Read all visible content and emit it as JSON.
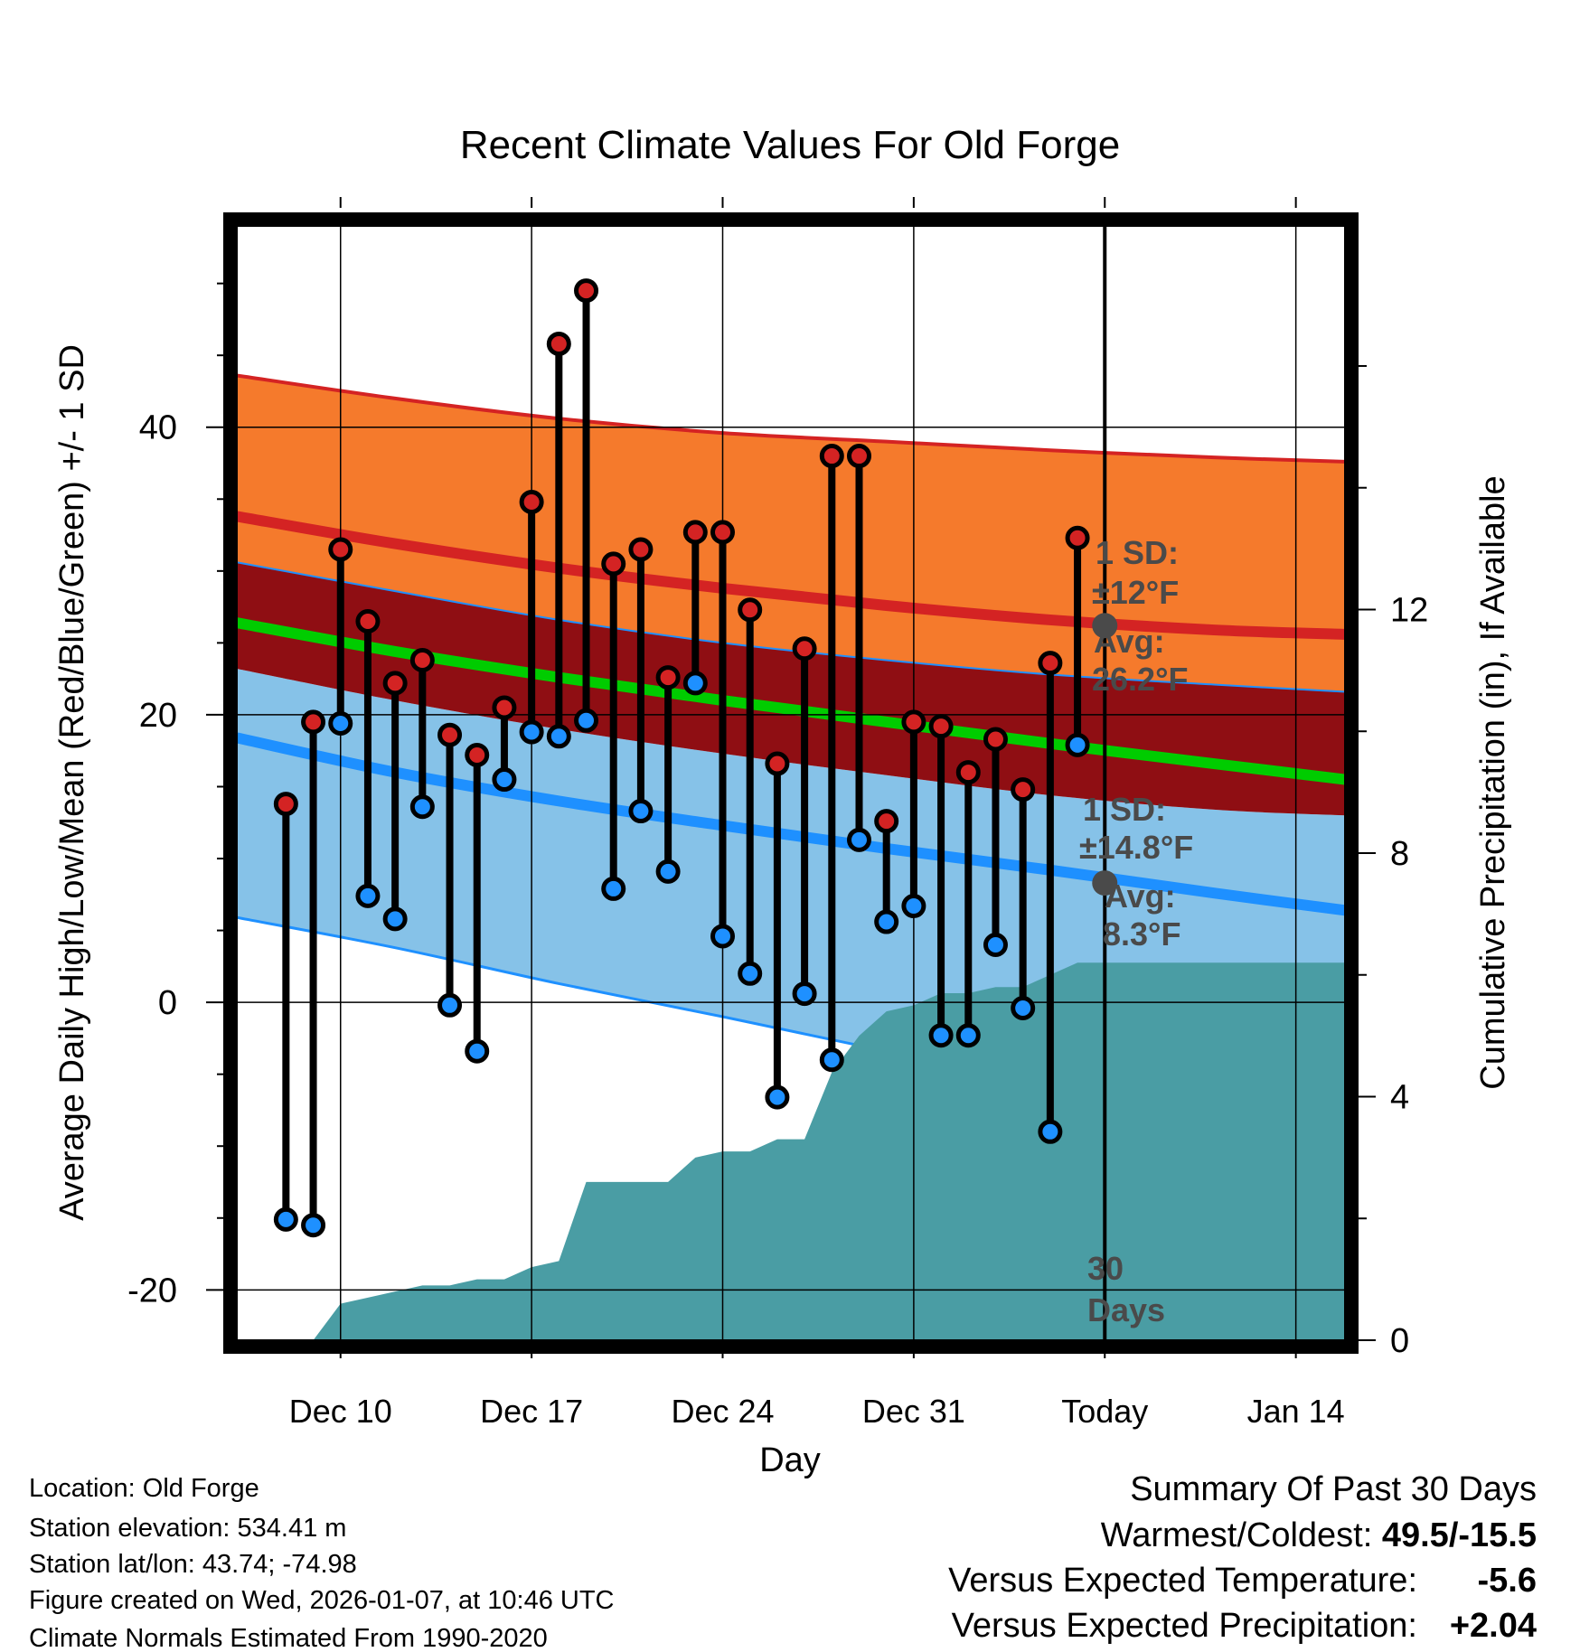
{
  "chart_data": {
    "type": "line",
    "title": "Recent Climate Values For Old Forge",
    "xlabel": "Day",
    "ylabel": "Average Daily High/Low/Mean (Red/Blue/Green) +/- 1 SD",
    "y2label": "Cumulative Precipitation (in), If Available",
    "xlim": [
      6.2,
      46.8
    ],
    "ylim": [
      -23.5,
      54
    ],
    "y2lim": [
      0,
      18.3
    ],
    "x_ticks": [
      {
        "x": 10,
        "label": "Dec 10"
      },
      {
        "x": 17,
        "label": "Dec 17"
      },
      {
        "x": 24,
        "label": "Dec 24"
      },
      {
        "x": 31,
        "label": "Dec 31"
      },
      {
        "x": 38,
        "label": "Today"
      },
      {
        "x": 45,
        "label": "Jan 14"
      }
    ],
    "y_ticks": [
      {
        "v": -20,
        "label": "-20"
      },
      {
        "v": 0,
        "label": "0"
      },
      {
        "v": 20,
        "label": "20"
      },
      {
        "v": 40,
        "label": "40"
      }
    ],
    "y2_ticks": [
      {
        "v": 0,
        "label": "0"
      },
      {
        "v": 4,
        "label": "4"
      },
      {
        "v": 8,
        "label": "8"
      },
      {
        "v": 12,
        "label": "12"
      }
    ],
    "today_x": 38,
    "today_label": "30 Days",
    "normals_x": [
      6.2,
      12,
      18,
      24,
      30,
      36,
      42,
      46.8
    ],
    "normal_high_upper": [
      43.6,
      42.0,
      40.6,
      39.6,
      39.0,
      38.4,
      37.9,
      37.6
    ],
    "normal_high_avg": [
      33.8,
      31.9,
      30.2,
      28.8,
      27.6,
      26.6,
      25.9,
      25.6
    ],
    "normal_high_lower": [
      30.6,
      28.6,
      26.6,
      25.0,
      23.8,
      22.8,
      22.1,
      21.6
    ],
    "normal_mean": [
      26.4,
      24.4,
      22.6,
      21.0,
      19.5,
      18.0,
      16.6,
      15.5
    ],
    "normal_low_upper": [
      23.2,
      21.0,
      19.0,
      17.3,
      15.8,
      14.4,
      13.4,
      13.0
    ],
    "normal_low_avg": [
      18.4,
      16.0,
      14.0,
      12.3,
      10.7,
      9.2,
      7.6,
      6.4
    ],
    "normal_low_lower": [
      5.9,
      3.8,
      1.3,
      -1.0,
      -3.4,
      -5.8,
      -8.0,
      -9.2
    ],
    "series": [
      {
        "name": "Daily High",
        "x": [
          8,
          9,
          10,
          11,
          12,
          13,
          14,
          15,
          16,
          17,
          18,
          19,
          20,
          21,
          22,
          23,
          24,
          25,
          26,
          27,
          28,
          29,
          30,
          31,
          32,
          33,
          34,
          35,
          36,
          37
        ],
        "values": [
          13.8,
          19.5,
          31.5,
          26.5,
          22.2,
          23.8,
          18.6,
          17.2,
          20.5,
          34.8,
          45.8,
          49.5,
          30.5,
          31.5,
          22.6,
          32.7,
          32.7,
          27.3,
          16.6,
          24.6,
          38.0,
          38.0,
          12.6,
          19.5,
          19.2,
          16.0,
          18.3,
          14.8,
          23.6,
          32.3
        ]
      },
      {
        "name": "Daily Low",
        "x": [
          8,
          9,
          10,
          11,
          12,
          13,
          14,
          15,
          16,
          17,
          18,
          19,
          20,
          21,
          22,
          23,
          24,
          25,
          26,
          27,
          28,
          29,
          30,
          31,
          32,
          33,
          34,
          35,
          36,
          37
        ],
        "values": [
          -15.1,
          -15.5,
          19.4,
          7.4,
          5.8,
          13.6,
          -0.2,
          -3.4,
          15.5,
          18.8,
          18.5,
          19.6,
          7.9,
          13.3,
          9.1,
          22.2,
          4.6,
          2.0,
          -6.6,
          0.6,
          -4.0,
          11.3,
          5.6,
          6.7,
          -2.3,
          -2.3,
          4.0,
          -0.4,
          -9.0,
          17.9
        ]
      },
      {
        "name": "Cumulative Precipitation",
        "x": [
          8,
          9,
          10,
          11,
          12,
          13,
          14,
          15,
          16,
          17,
          18,
          19,
          20,
          21,
          22,
          23,
          24,
          25,
          26,
          27,
          28,
          29,
          30,
          31,
          32,
          33,
          34,
          35,
          36,
          37,
          38,
          46.8
        ],
        "values": [
          0.0,
          0.0,
          0.6,
          0.7,
          0.8,
          0.9,
          0.9,
          1.0,
          1.0,
          1.2,
          1.3,
          2.6,
          2.6,
          2.6,
          2.6,
          3.0,
          3.1,
          3.1,
          3.3,
          3.3,
          4.4,
          5.0,
          5.4,
          5.5,
          5.7,
          5.7,
          5.8,
          5.8,
          6.0,
          6.2,
          6.2,
          6.2
        ]
      }
    ],
    "annotations": {
      "high_sd_line1": "1 SD:",
      "high_sd_line2": "±12°F",
      "high_avg_line1": "Avg:",
      "high_avg_line2": "26.2°F",
      "low_sd_line1": "1 SD:",
      "low_sd_line2": "±14.8°F",
      "low_avg_line1": "Avg:",
      "low_avg_line2": "8.3°F"
    },
    "today_marker_high": 26.2,
    "today_marker_low": 8.3
  },
  "info": {
    "location": "Location: Old Forge",
    "elevation": "Station elevation: 534.41 m",
    "latlon": "Station lat/lon: 43.74; -74.98",
    "created": "Figure created on Wed, 2026-01-07, at 10:46 UTC",
    "normals": "Climate Normals Estimated From 1990-2020"
  },
  "summary": {
    "title": "Summary Of Past 30 Days",
    "warmest_label": "Warmest/Coldest:",
    "warmest_value": "49.5/-15.5",
    "temp_label": "Versus Expected Temperature:",
    "temp_value": "-5.6",
    "temp_color": "#1e8fff",
    "precip_label": "Versus Expected Precipitation:",
    "precip_value": "+2.04",
    "precip_color": "#22bb22"
  },
  "colors": {
    "high_band": "#f57a2c",
    "high_line": "#d42323",
    "overlap_band": "#8f0e13",
    "mean_line": "#00cc00",
    "low_band": "#86c2e8",
    "low_line": "#1e90ff",
    "precip": "#4a9da4",
    "high_marker": "#d42323",
    "low_marker": "#1e90ff",
    "today_marker": "#4a4a4a"
  }
}
